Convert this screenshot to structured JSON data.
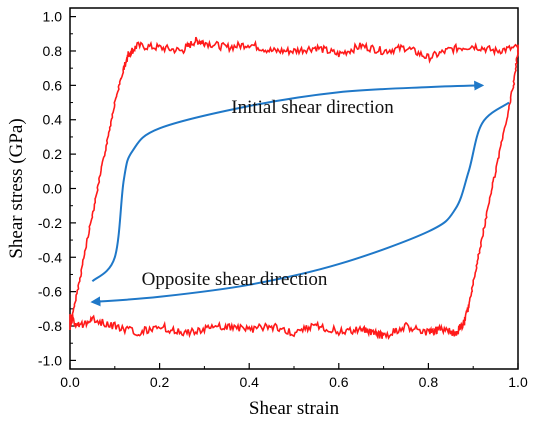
{
  "chart_data": {
    "type": "line",
    "xlabel": "Shear strain",
    "ylabel": "Shear stress (GPa)",
    "xlim": [
      0.0,
      1.0
    ],
    "ylim": [
      -1.05,
      1.05
    ],
    "xticks": [
      "0.0",
      "0.2",
      "0.4",
      "0.6",
      "0.8",
      "1.0"
    ],
    "yticks": [
      "1.0",
      "0.8",
      "0.6",
      "0.4",
      "0.2",
      "0.0",
      "-0.2",
      "-0.4",
      "-0.6",
      "-0.8",
      "-1.0"
    ],
    "grid": false,
    "legend": "none",
    "colors": {
      "hysteresis": "#ff1a1a",
      "arrows": "#1f78c8",
      "axes": "#000000"
    },
    "series": [
      {
        "loop": "hysteresis",
        "x": [
          0.0,
          0.02,
          0.04,
          0.06,
          0.08,
          0.1,
          0.12,
          0.13,
          0.15,
          0.2,
          0.25,
          0.28,
          0.3,
          0.35,
          0.4,
          0.45,
          0.5,
          0.55,
          0.6,
          0.65,
          0.7,
          0.75,
          0.8,
          0.85,
          0.9,
          0.95,
          1.0,
          1.0,
          0.99,
          0.97,
          0.95,
          0.93,
          0.91,
          0.89,
          0.88,
          0.86,
          0.82,
          0.8,
          0.75,
          0.7,
          0.68,
          0.65,
          0.6,
          0.55,
          0.5,
          0.45,
          0.4,
          0.35,
          0.3,
          0.25,
          0.2,
          0.15,
          0.1,
          0.05,
          0.02,
          0.0,
          0.0
        ],
        "y": [
          -0.82,
          -0.55,
          -0.28,
          -0.02,
          0.24,
          0.5,
          0.7,
          0.78,
          0.83,
          0.82,
          0.8,
          0.86,
          0.85,
          0.82,
          0.84,
          0.8,
          0.8,
          0.82,
          0.78,
          0.83,
          0.8,
          0.82,
          0.76,
          0.81,
          0.83,
          0.8,
          0.82,
          0.8,
          0.6,
          0.35,
          0.1,
          -0.15,
          -0.42,
          -0.68,
          -0.78,
          -0.84,
          -0.82,
          -0.84,
          -0.8,
          -0.86,
          -0.84,
          -0.82,
          -0.83,
          -0.8,
          -0.84,
          -0.8,
          -0.82,
          -0.8,
          -0.82,
          -0.84,
          -0.8,
          -0.84,
          -0.8,
          -0.76,
          -0.8,
          -0.75,
          -0.82
        ]
      }
    ],
    "annotations": [
      {
        "text": "Initial shear direction",
        "x": 0.36,
        "y": 0.44
      },
      {
        "text": "Opposite shear direction",
        "x": 0.16,
        "y": -0.56
      }
    ],
    "arrows": [
      {
        "x": [
          0.05,
          0.1,
          0.12,
          0.14,
          0.2,
          0.4,
          0.6,
          0.8,
          0.92
        ],
        "y": [
          -0.54,
          -0.4,
          0.05,
          0.22,
          0.35,
          0.48,
          0.56,
          0.59,
          0.6
        ]
      },
      {
        "x": [
          0.98,
          0.92,
          0.89,
          0.86,
          0.8,
          0.6,
          0.4,
          0.2,
          0.05
        ],
        "y": [
          0.5,
          0.38,
          0.1,
          -0.12,
          -0.25,
          -0.44,
          -0.56,
          -0.63,
          -0.66
        ]
      }
    ]
  }
}
